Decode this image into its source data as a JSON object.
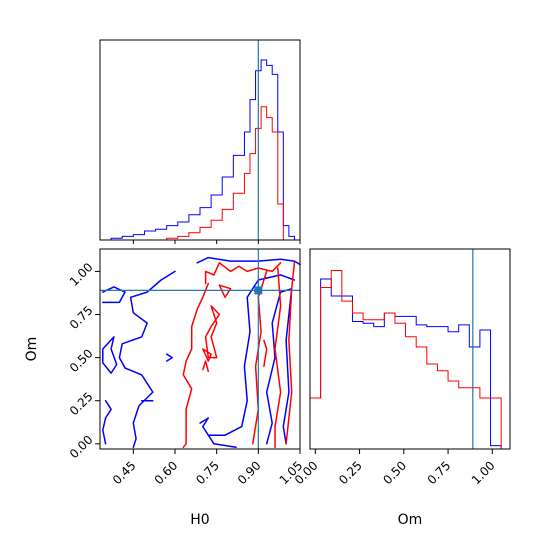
{
  "colors": {
    "series_a": "#0000ff",
    "series_b": "#ff0000",
    "truth": "#1f77b4"
  },
  "chart_data": [
    {
      "type": "area",
      "panel": "H0 marginal histogram (top-left)",
      "xlim": [
        0.33,
        1.05
      ],
      "truth_x": 0.9,
      "bin_edges": [
        0.33,
        0.37,
        0.41,
        0.45,
        0.49,
        0.53,
        0.57,
        0.61,
        0.65,
        0.69,
        0.73,
        0.77,
        0.81,
        0.85,
        0.87,
        0.89,
        0.91,
        0.93,
        0.95,
        0.97,
        0.99,
        1.01,
        1.03,
        1.05
      ],
      "series": [
        {
          "color": "series_a",
          "values": [
            0.0,
            0.01,
            0.02,
            0.03,
            0.05,
            0.06,
            0.08,
            0.1,
            0.14,
            0.18,
            0.25,
            0.35,
            0.47,
            0.6,
            0.78,
            0.94,
            1.0,
            0.97,
            0.92,
            0.6,
            0.08,
            0.02,
            0.0
          ]
        },
        {
          "color": "series_b",
          "values": [
            0.0,
            0.0,
            0.0,
            0.0,
            0.0,
            0.0,
            0.01,
            0.02,
            0.04,
            0.07,
            0.11,
            0.17,
            0.26,
            0.37,
            0.48,
            0.62,
            0.74,
            0.68,
            0.6,
            0.2,
            0.0,
            0.0,
            0.0
          ]
        }
      ]
    },
    {
      "type": "line",
      "panel": "H0 vs Om contours (bottom-left)",
      "xlabel": "H0",
      "ylabel": "Om",
      "xlim": [
        0.33,
        1.05
      ],
      "ylim": [
        -0.03,
        1.13
      ],
      "xticks": [
        "0.45",
        "0.60",
        "0.75",
        "0.90",
        "1.05"
      ],
      "xtick_values": [
        0.45,
        0.6,
        0.75,
        0.9,
        1.05
      ],
      "yticks": [
        "0.00",
        "0.25",
        "0.50",
        "0.75",
        "1.00"
      ],
      "ytick_values": [
        0.0,
        0.25,
        0.5,
        0.75,
        1.0
      ],
      "truth": [
        0.9,
        0.89
      ],
      "series": [
        {
          "color": "series_a",
          "points": [
            [
              0.68,
              1.05
            ],
            [
              0.72,
              1.08
            ],
            [
              0.8,
              1.06
            ],
            [
              0.9,
              1.06
            ],
            [
              0.98,
              1.07
            ],
            [
              1.03,
              1.06
            ],
            [
              1.05,
              1.04
            ]
          ]
        },
        {
          "color": "series_a",
          "points": [
            [
              0.6,
              1.0
            ],
            [
              0.55,
              0.95
            ],
            [
              0.5,
              0.88
            ],
            [
              0.44,
              0.85
            ],
            [
              0.45,
              0.76
            ],
            [
              0.5,
              0.7
            ],
            [
              0.48,
              0.62
            ],
            [
              0.41,
              0.58
            ],
            [
              0.4,
              0.5
            ],
            [
              0.42,
              0.44
            ],
            [
              0.48,
              0.4
            ],
            [
              0.52,
              0.3
            ],
            [
              0.47,
              0.22
            ],
            [
              0.45,
              0.12
            ],
            [
              0.46,
              0.03
            ],
            [
              0.45,
              -0.02
            ]
          ]
        },
        {
          "color": "series_a",
          "points": [
            [
              0.34,
              0.88
            ],
            [
              0.38,
              0.91
            ],
            [
              0.42,
              0.88
            ],
            [
              0.4,
              0.82
            ],
            [
              0.34,
              0.82
            ]
          ]
        },
        {
          "color": "series_a",
          "points": [
            [
              0.38,
              0.62
            ],
            [
              0.34,
              0.55
            ],
            [
              0.34,
              0.47
            ],
            [
              0.37,
              0.41
            ],
            [
              0.39,
              0.46
            ],
            [
              0.37,
              0.55
            ],
            [
              0.38,
              0.62
            ]
          ]
        },
        {
          "color": "series_a",
          "points": [
            [
              0.35,
              0.25
            ],
            [
              0.37,
              0.2
            ],
            [
              0.35,
              0.15
            ],
            [
              0.34,
              0.08
            ],
            [
              0.35,
              0.0
            ]
          ]
        },
        {
          "color": "series_a",
          "points": [
            [
              0.48,
              0.25
            ],
            [
              0.52,
              0.25
            ]
          ]
        },
        {
          "color": "series_a",
          "points": [
            [
              0.57,
              0.52
            ],
            [
              0.59,
              0.5
            ],
            [
              0.57,
              0.48
            ]
          ]
        },
        {
          "color": "series_a",
          "points": [
            [
              0.72,
              0.05
            ],
            [
              0.78,
              0.05
            ],
            [
              0.84,
              0.1
            ],
            [
              0.86,
              0.25
            ],
            [
              0.85,
              0.45
            ],
            [
              0.87,
              0.65
            ],
            [
              0.86,
              0.85
            ],
            [
              0.9,
              0.95
            ],
            [
              0.98,
              0.98
            ],
            [
              1.03,
              0.95
            ]
          ]
        },
        {
          "color": "series_a",
          "points": [
            [
              0.7,
              0.1
            ],
            [
              0.74,
              0.0
            ],
            [
              0.82,
              -0.02
            ]
          ]
        },
        {
          "color": "series_a",
          "points": [
            [
              0.93,
              0.0
            ],
            [
              0.95,
              0.12
            ],
            [
              0.93,
              0.3
            ],
            [
              0.96,
              0.5
            ],
            [
              0.95,
              0.7
            ],
            [
              0.98,
              0.88
            ],
            [
              1.02,
              0.9
            ],
            [
              1.0,
              0.6
            ],
            [
              1.01,
              0.3
            ],
            [
              0.99,
              0.1
            ],
            [
              1.0,
              0.0
            ]
          ]
        },
        {
          "color": "series_a",
          "points": [
            [
              0.69,
              0.12
            ],
            [
              0.72,
              0.15
            ],
            [
              0.7,
              0.1
            ]
          ]
        },
        {
          "color": "series_b",
          "points": [
            [
              0.71,
              0.93
            ],
            [
              0.71,
              1.0
            ],
            [
              0.74,
              0.98
            ],
            [
              0.76,
              1.05
            ],
            [
              0.8,
              1.0
            ],
            [
              0.83,
              1.03
            ],
            [
              0.86,
              1.0
            ],
            [
              0.9,
              1.02
            ],
            [
              0.95,
              1.0
            ],
            [
              0.98,
              1.05
            ]
          ]
        },
        {
          "color": "series_b",
          "points": [
            [
              0.72,
              0.93
            ],
            [
              0.7,
              0.85
            ],
            [
              0.68,
              0.78
            ],
            [
              0.66,
              0.68
            ],
            [
              0.66,
              0.55
            ],
            [
              0.64,
              0.48
            ],
            [
              0.63,
              0.4
            ],
            [
              0.66,
              0.32
            ],
            [
              0.64,
              0.2
            ],
            [
              0.64,
              0.0
            ],
            [
              0.63,
              -0.02
            ]
          ]
        },
        {
          "color": "series_b",
          "points": [
            [
              0.76,
              0.92
            ],
            [
              0.8,
              0.9
            ],
            [
              0.78,
              0.85
            ],
            [
              0.76,
              0.92
            ]
          ]
        },
        {
          "color": "series_b",
          "points": [
            [
              0.73,
              0.8
            ],
            [
              0.76,
              0.75
            ],
            [
              0.73,
              0.68
            ],
            [
              0.71,
              0.62
            ],
            [
              0.72,
              0.5
            ],
            [
              0.75,
              0.5
            ],
            [
              0.73,
              0.62
            ],
            [
              0.75,
              0.7
            ],
            [
              0.73,
              0.8
            ]
          ]
        },
        {
          "color": "series_b",
          "points": [
            [
              0.7,
              0.55
            ],
            [
              0.73,
              0.52
            ],
            [
              0.72,
              0.48
            ],
            [
              0.7,
              0.55
            ]
          ]
        },
        {
          "color": "series_b",
          "points": [
            [
              0.7,
              0.43
            ],
            [
              0.71,
              0.48
            ],
            [
              0.72,
              0.42
            ]
          ]
        },
        {
          "color": "series_b",
          "points": [
            [
              0.88,
              0.0
            ],
            [
              0.9,
              0.2
            ],
            [
              0.89,
              0.45
            ],
            [
              0.91,
              0.65
            ],
            [
              0.9,
              0.85
            ],
            [
              0.93,
              1.0
            ]
          ]
        },
        {
          "color": "series_b",
          "points": [
            [
              0.97,
              1.02
            ],
            [
              0.98,
              0.8
            ],
            [
              0.96,
              0.55
            ],
            [
              0.98,
              0.3
            ],
            [
              0.96,
              0.1
            ],
            [
              0.96,
              -0.02
            ]
          ]
        },
        {
          "color": "series_b",
          "points": [
            [
              1.0,
              0.0
            ],
            [
              1.02,
              0.3
            ],
            [
              1.01,
              0.6
            ],
            [
              1.02,
              0.9
            ],
            [
              1.03,
              1.05
            ]
          ]
        },
        {
          "color": "series_b",
          "points": [
            [
              0.92,
              0.45
            ],
            [
              0.93,
              0.55
            ],
            [
              0.92,
              0.6
            ]
          ]
        }
      ]
    },
    {
      "type": "area",
      "panel": "Om marginal histogram (bottom-right)",
      "xlabel": "Om",
      "xlim": [
        -0.03,
        1.1
      ],
      "xticks": [
        "0.00",
        "0.25",
        "0.50",
        "0.75",
        "1.00"
      ],
      "xtick_values": [
        0.0,
        0.25,
        0.5,
        0.75,
        1.0
      ],
      "truth_x": 0.89,
      "bin_edges": [
        -0.03,
        0.03,
        0.09,
        0.15,
        0.21,
        0.27,
        0.33,
        0.39,
        0.45,
        0.51,
        0.57,
        0.63,
        0.69,
        0.75,
        0.81,
        0.87,
        0.93,
        0.99,
        1.05,
        1.1
      ],
      "series": [
        {
          "color": "series_a",
          "values": [
            0.3,
            1.0,
            0.9,
            0.9,
            0.75,
            0.74,
            0.72,
            0.8,
            0.78,
            0.78,
            0.73,
            0.72,
            0.72,
            0.69,
            0.73,
            0.6,
            0.7,
            0.02,
            0.0
          ]
        },
        {
          "color": "series_b",
          "values": [
            0.3,
            0.95,
            1.05,
            0.87,
            0.8,
            0.76,
            0.76,
            0.8,
            0.74,
            0.66,
            0.6,
            0.5,
            0.46,
            0.4,
            0.36,
            0.36,
            0.3,
            0.3,
            0.0
          ]
        }
      ]
    }
  ]
}
